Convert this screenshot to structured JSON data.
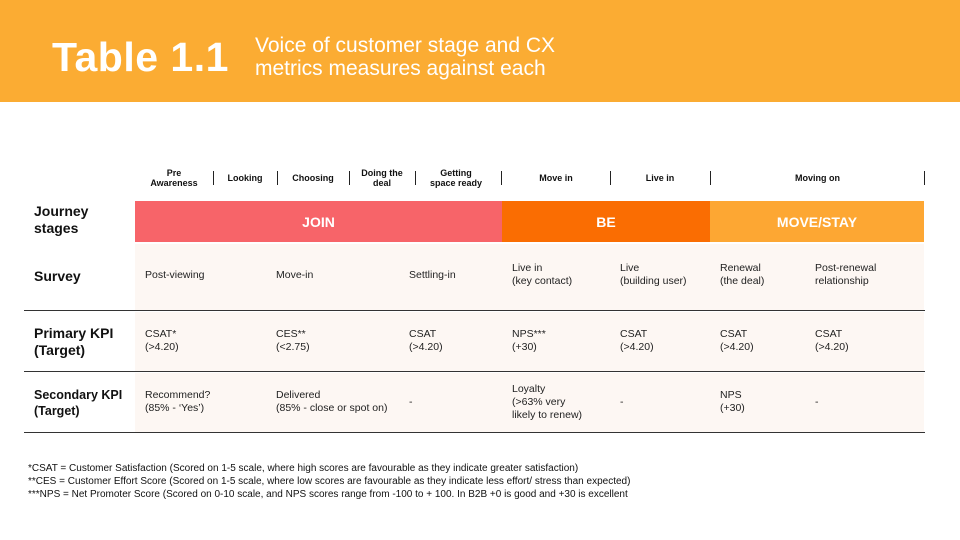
{
  "header": {
    "table_number": "Table 1.1",
    "title_line1": "Voice of customer stage and CX",
    "title_line2": "metrics measures against each"
  },
  "stages": {
    "pre_awareness_1": "Pre",
    "pre_awareness_2": "Awareness",
    "looking": "Looking",
    "choosing": "Choosing",
    "doing_deal_1": "Doing the",
    "doing_deal_2": "deal",
    "getting_ready_1": "Getting",
    "getting_ready_2": "space ready",
    "move_in": "Move in",
    "live_in": "Live in",
    "moving_on": "Moving on"
  },
  "bands": {
    "join": "JOIN",
    "be": "BE",
    "move_stay": "MOVE/STAY"
  },
  "rows": {
    "journey_label_1": "Journey",
    "journey_label_2": "stages",
    "survey_label": "Survey",
    "primary_label_1": "Primary KPI",
    "primary_label_2": "(Target)",
    "secondary_label_1": "Secondary KPI",
    "secondary_label_2": "(Target)"
  },
  "survey": {
    "c1": "Post-viewing",
    "c2": "Move-in",
    "c3": "Settling-in",
    "c4_1": "Live in",
    "c4_2": "(key contact)",
    "c5_1": "Live",
    "c5_2": "(building user)",
    "c6_1": "Renewal",
    "c6_2": "(the deal)",
    "c7_1": "Post-renewal",
    "c7_2": "relationship"
  },
  "primary": {
    "c1_1": "CSAT*",
    "c1_2": "(>4.20)",
    "c2_1": "CES**",
    "c2_2": "(<2.75)",
    "c3_1": "CSAT",
    "c3_2": "(>4.20)",
    "c4_1": "NPS***",
    "c4_2": "(+30)",
    "c5_1": "CSAT",
    "c5_2": "(>4.20)",
    "c6_1": "CSAT",
    "c6_2": "(>4.20)",
    "c7_1": "CSAT",
    "c7_2": "(>4.20)"
  },
  "secondary": {
    "c1_1": "Recommend?",
    "c1_2": "(85% - ‘Yes’)",
    "c2_1": "Delivered",
    "c2_2": "(85% - close or spot on)",
    "c3": "-",
    "c4_1": "Loyalty",
    "c4_2": "(>63% very",
    "c4_3": "likely to renew)",
    "c5": "-",
    "c6_1": "NPS",
    "c6_2": "(+30)",
    "c7": "-"
  },
  "footnotes": {
    "csat": "*CSAT = Customer Satisfaction (Scored on 1-5 scale, where high scores are favourable as they indicate greater satisfaction)",
    "ces": "**CES = Customer Effort Score (Scored on 1-5 scale, where low scores are favourable as they indicate less effort/ stress than expected)",
    "nps": "***NPS = Net Promoter Score (Scored on 0-10 scale, and NPS scores range from -100 to + 100. In B2B +0 is good and +30 is excellent"
  },
  "colors": {
    "header_band": "#fbac33",
    "join": "#f76469",
    "be": "#fa6d02",
    "move_stay": "#fda733"
  }
}
